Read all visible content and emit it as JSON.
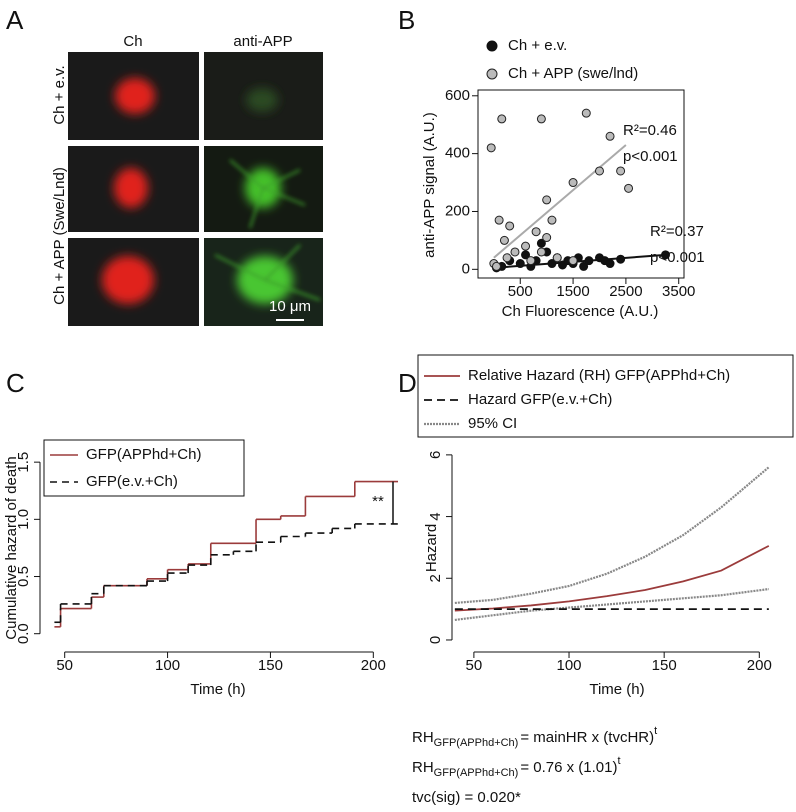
{
  "panels": {
    "a": "A",
    "b": "B",
    "c": "C",
    "d": "D"
  },
  "panel_a": {
    "columns": [
      "Ch",
      "anti-APP"
    ],
    "rows": [
      "Ch + e.v.",
      "Ch + APP (Swe/Lnd)"
    ],
    "scale_bar": "10 μm"
  },
  "chart_data": [
    {
      "type": "scatter",
      "xlabel": "Ch Fluorescence (A.U.)",
      "ylabel": "anti-APP signal (A.U.)",
      "xlim": [
        -300,
        3600
      ],
      "ylim": [
        -30,
        620
      ],
      "xticks": [
        500,
        1500,
        2500,
        3500
      ],
      "yticks": [
        0,
        200,
        400,
        600
      ],
      "legend": "top-left",
      "series": [
        {
          "name": "Ch + e.v.",
          "color": "#111111",
          "x": [
            50,
            150,
            300,
            500,
            600,
            700,
            800,
            900,
            1000,
            1100,
            1200,
            1300,
            1400,
            1500,
            1600,
            1700,
            1800,
            2000,
            2100,
            2200,
            2400,
            3250
          ],
          "values": [
            5,
            10,
            30,
            20,
            50,
            10,
            30,
            90,
            60,
            20,
            40,
            15,
            30,
            20,
            40,
            10,
            30,
            40,
            30,
            20,
            35,
            50
          ],
          "fit": {
            "x": [
              0,
              3250
            ],
            "values": [
              5,
              50
            ]
          },
          "annotations": [
            "R²=0.37",
            "p<0.001"
          ]
        },
        {
          "name": "Ch + APP (swe/lnd)",
          "color": "#bbbbbb",
          "x": [
            -50,
            150,
            900,
            1750,
            2200,
            2400,
            2550,
            2000,
            1500,
            1000,
            100,
            300,
            800,
            1100,
            200,
            600,
            400,
            900,
            1200,
            0,
            50,
            700,
            250,
            1500,
            1000
          ],
          "values": [
            420,
            520,
            520,
            540,
            460,
            340,
            280,
            340,
            300,
            240,
            170,
            150,
            130,
            170,
            100,
            80,
            60,
            60,
            40,
            20,
            10,
            30,
            40,
            30,
            110
          ],
          "fit": {
            "x": [
              0,
              2500
            ],
            "values": [
              40,
              430
            ]
          },
          "annotations": [
            "R²=0.46",
            "p<0.001"
          ]
        }
      ]
    },
    {
      "type": "step",
      "xlabel": "Time (h)",
      "ylabel": "Cumulative hazard of death",
      "xlim": [
        38,
        212
      ],
      "ylim": [
        -0.16,
        1.65
      ],
      "xticks": [
        50,
        100,
        150,
        200
      ],
      "yticks": [
        {
          "value": 0,
          "label": "0.0"
        },
        {
          "value": 0.5,
          "label": "0.5"
        },
        {
          "value": 1,
          "label": "1.0"
        },
        {
          "value": 1.5,
          "label": "1.5"
        }
      ],
      "legend": "top-left",
      "annotation": "**",
      "series": [
        {
          "name": "GFP(APPhd+Ch)",
          "color": "#9b3b3b",
          "dash": false,
          "x": [
            45,
            48,
            63,
            69,
            90,
            100,
            110,
            121,
            143,
            155,
            167,
            191
          ],
          "values": [
            0.06,
            0.22,
            0.32,
            0.42,
            0.48,
            0.56,
            0.61,
            0.79,
            1.0,
            1.03,
            1.2,
            1.33
          ]
        },
        {
          "name": "GFP(e.v.+Ch)",
          "color": "#111111",
          "dash": true,
          "x": [
            45,
            48,
            63,
            69,
            90,
            100,
            110,
            121,
            132,
            143,
            155,
            167,
            180,
            191
          ],
          "values": [
            0.1,
            0.26,
            0.35,
            0.42,
            0.46,
            0.53,
            0.6,
            0.69,
            0.72,
            0.8,
            0.85,
            0.88,
            0.92,
            0.96
          ]
        }
      ]
    },
    {
      "type": "line",
      "xlabel": "Time (h)",
      "ylabel": "Hazard",
      "xlim": [
        38.5,
        213.5
      ],
      "ylim": [
        -0.39,
        6.32
      ],
      "xticks": [
        50,
        100,
        150,
        200
      ],
      "yticks": [
        0,
        2,
        4,
        6
      ],
      "legend": "top-left",
      "series": [
        {
          "name": "Relative Hazard (RH) GFP(APPhd+Ch)",
          "color": "#9b3b3b",
          "dash": false,
          "x": [
            40,
            60,
            80,
            100,
            120,
            140,
            160,
            180,
            205
          ],
          "values": [
            0.95,
            1.02,
            1.12,
            1.25,
            1.42,
            1.62,
            1.9,
            2.25,
            3.05
          ]
        },
        {
          "name": "Hazard GFP(e.v.+Ch)",
          "color": "#111111",
          "dash": true,
          "x": [
            40,
            205
          ],
          "values": [
            1,
            1
          ]
        }
      ],
      "ci": {
        "name": "95% CI",
        "color": "#888888",
        "x": [
          40,
          60,
          80,
          100,
          120,
          140,
          160,
          180,
          205
        ],
        "lower": [
          0.65,
          0.8,
          0.95,
          1.05,
          1.15,
          1.25,
          1.35,
          1.45,
          1.65
        ],
        "upper": [
          1.2,
          1.3,
          1.5,
          1.75,
          2.15,
          2.7,
          3.4,
          4.3,
          5.6
        ]
      }
    }
  ],
  "formulas": [
    {
      "lhs": "RH",
      "sub": "GFP(APPhd+Ch)",
      "rhs": "= mainHR x (tvcHR)",
      "sup": "t"
    },
    {
      "lhs": "RH",
      "sub": "GFP(APPhd+Ch)",
      "rhs": "= 0.76 x (1.01)",
      "sup": "t"
    },
    {
      "text": "tvc(sig) = 0.020*"
    }
  ]
}
